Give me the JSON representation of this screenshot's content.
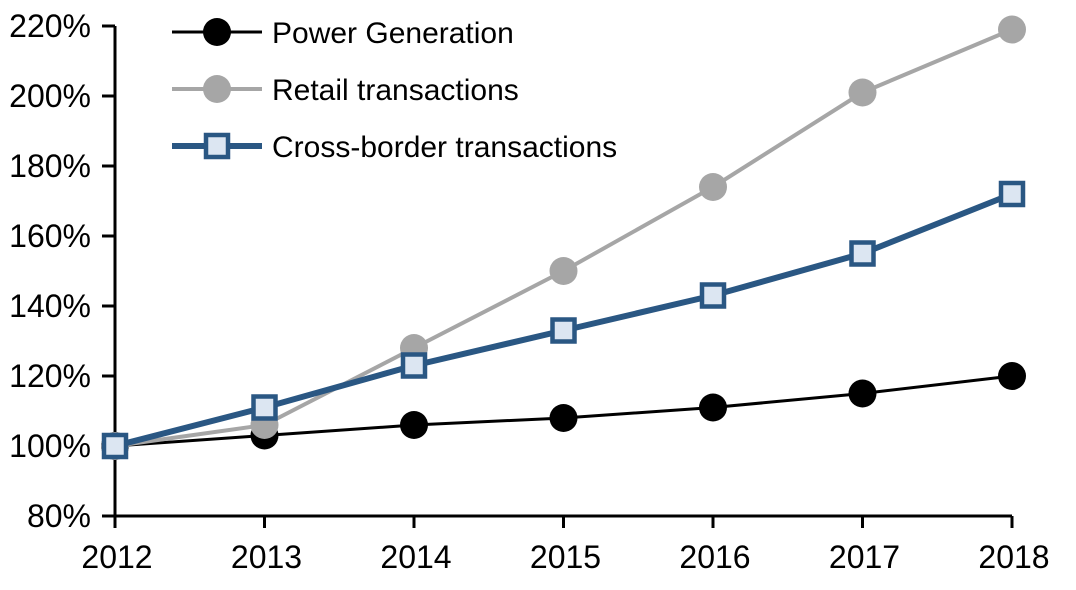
{
  "chart_data": {
    "type": "line",
    "title": "",
    "xlabel": "",
    "ylabel": "",
    "x_categories": [
      "2012",
      "2013",
      "2014",
      "2015",
      "2016",
      "2017",
      "2018"
    ],
    "y_ticks": [
      80,
      100,
      120,
      140,
      160,
      180,
      200,
      220
    ],
    "y_tick_labels": [
      "80%",
      "100%",
      "120%",
      "140%",
      "160%",
      "180%",
      "200%",
      "220%"
    ],
    "ylim": [
      80,
      220
    ],
    "grid": false,
    "legend_position": "top-left-inside",
    "series": [
      {
        "name": "Power Generation",
        "marker": "circle",
        "color": "#000000",
        "marker_fill": "#000000",
        "line_width": 3,
        "values": [
          100,
          103,
          106,
          108,
          111,
          115,
          120
        ]
      },
      {
        "name": "Retail transactions",
        "marker": "circle",
        "color": "#A6A6A6",
        "marker_fill": "#A6A6A6",
        "line_width": 4,
        "values": [
          100,
          106,
          128,
          150,
          174,
          201,
          219
        ]
      },
      {
        "name": "Cross-border transactions",
        "marker": "square",
        "color": "#2A5783",
        "marker_fill": "#DCE6F2",
        "line_width": 6,
        "values": [
          100,
          111,
          123,
          133,
          143,
          155,
          172
        ]
      }
    ]
  },
  "colors": {
    "axis": "#000000",
    "background": "#FFFFFF",
    "text": "#000000"
  }
}
